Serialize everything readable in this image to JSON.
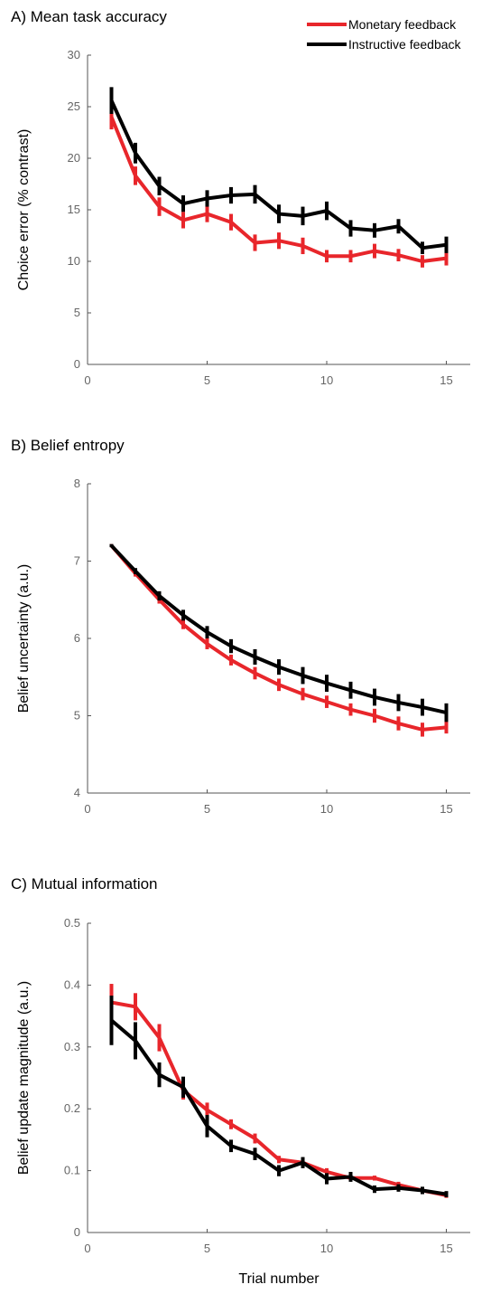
{
  "legend": [
    {
      "label": "Monetary feedback",
      "color": "#e8262b"
    },
    {
      "label": "Instructive feedback",
      "color": "#000000"
    }
  ],
  "xlabel": "Trial number",
  "chart_data": [
    {
      "type": "line",
      "title": "A) Mean task accuracy",
      "ylabel": "Choice error (% contrast)",
      "x": [
        1,
        2,
        3,
        4,
        5,
        6,
        7,
        8,
        9,
        10,
        11,
        12,
        13,
        14,
        15
      ],
      "xlim": [
        0,
        16
      ],
      "xticks": [
        0,
        5,
        10,
        15
      ],
      "ylim": [
        0,
        30
      ],
      "yticks": [
        0,
        5,
        10,
        15,
        20,
        25,
        30
      ],
      "series": [
        {
          "name": "Monetary feedback",
          "color": "#e8262b",
          "values": [
            24.0,
            18.3,
            15.3,
            14.0,
            14.6,
            13.8,
            11.8,
            12.0,
            11.5,
            10.5,
            10.5,
            11.0,
            10.6,
            10.0,
            10.3
          ],
          "errors": [
            1.2,
            0.9,
            0.9,
            0.8,
            0.8,
            0.8,
            0.8,
            0.8,
            0.8,
            0.6,
            0.6,
            0.7,
            0.6,
            0.6,
            0.7
          ]
        },
        {
          "name": "Instructive feedback",
          "color": "#000000",
          "values": [
            25.6,
            20.5,
            17.3,
            15.6,
            16.1,
            16.4,
            16.5,
            14.6,
            14.4,
            14.9,
            13.2,
            13.0,
            13.4,
            11.3,
            11.6
          ]
        },
        {
          "name": "Instructive feedback",
          "color": "#000000",
          "values": [
            25.6,
            20.5,
            17.3,
            15.6,
            16.1,
            16.4,
            16.5,
            14.6,
            14.4,
            14.9,
            13.2,
            13.0,
            13.4,
            11.3,
            11.6
          ],
          "errors": [
            1.3,
            1.0,
            0.9,
            0.8,
            0.8,
            0.8,
            0.9,
            0.9,
            0.9,
            0.9,
            0.8,
            0.7,
            0.7,
            0.6,
            0.8
          ]
        }
      ]
    },
    {
      "type": "line",
      "title": "B) Belief entropy",
      "ylabel": "Belief uncertainty (a.u.)",
      "x": [
        1,
        2,
        3,
        4,
        5,
        6,
        7,
        8,
        9,
        10,
        11,
        12,
        13,
        14,
        15
      ],
      "xlim": [
        0,
        16
      ],
      "xticks": [
        0,
        5,
        10,
        15
      ],
      "ylim": [
        4,
        8
      ],
      "yticks": [
        4,
        5,
        6,
        7,
        8
      ],
      "series": [
        {
          "name": "Monetary feedback",
          "color": "#e8262b",
          "values": [
            7.2,
            6.84,
            6.5,
            6.18,
            5.93,
            5.72,
            5.55,
            5.4,
            5.28,
            5.18,
            5.08,
            5.0,
            4.9,
            4.82,
            4.85
          ],
          "errors": [
            0.02,
            0.04,
            0.05,
            0.06,
            0.07,
            0.07,
            0.08,
            0.08,
            0.08,
            0.08,
            0.08,
            0.09,
            0.09,
            0.09,
            0.08
          ]
        },
        {
          "name": "Instructive feedback",
          "color": "#000000",
          "values": [
            7.2,
            6.87,
            6.55,
            6.3,
            6.08,
            5.9,
            5.76,
            5.63,
            5.52,
            5.42,
            5.33,
            5.24,
            5.17,
            5.11,
            5.04
          ],
          "errors": [
            0.02,
            0.04,
            0.06,
            0.07,
            0.08,
            0.09,
            0.1,
            0.1,
            0.11,
            0.11,
            0.11,
            0.11,
            0.11,
            0.11,
            0.12
          ]
        }
      ]
    },
    {
      "type": "line",
      "title": "C) Mutual information",
      "ylabel": "Belief update magnitude (a.u.)",
      "x": [
        1,
        2,
        3,
        4,
        5,
        6,
        7,
        8,
        9,
        10,
        11,
        12,
        13,
        14,
        15
      ],
      "xlim": [
        0,
        16
      ],
      "xticks": [
        0,
        5,
        10,
        15
      ],
      "ylim": [
        0,
        0.5
      ],
      "yticks": [
        0,
        0.1,
        0.2,
        0.3,
        0.4,
        0.5
      ],
      "series": [
        {
          "name": "Monetary feedback",
          "color": "#e8262b",
          "values": [
            0.372,
            0.365,
            0.315,
            0.23,
            0.198,
            0.175,
            0.152,
            0.118,
            0.113,
            0.098,
            0.088,
            0.088,
            0.077,
            0.068,
            0.06
          ],
          "errors": [
            0.03,
            0.022,
            0.022,
            0.015,
            0.012,
            0.008,
            0.008,
            0.006,
            0.006,
            0.006,
            0.005,
            0.004,
            0.005,
            0.004,
            0.004
          ]
        },
        {
          "name": "Instructive feedback",
          "color": "#000000",
          "values": [
            0.343,
            0.31,
            0.255,
            0.235,
            0.172,
            0.14,
            0.127,
            0.1,
            0.113,
            0.087,
            0.09,
            0.07,
            0.072,
            0.068,
            0.062
          ],
          "errors": [
            0.04,
            0.03,
            0.02,
            0.017,
            0.018,
            0.01,
            0.01,
            0.009,
            0.009,
            0.009,
            0.008,
            0.006,
            0.006,
            0.006,
            0.005
          ]
        }
      ]
    }
  ]
}
